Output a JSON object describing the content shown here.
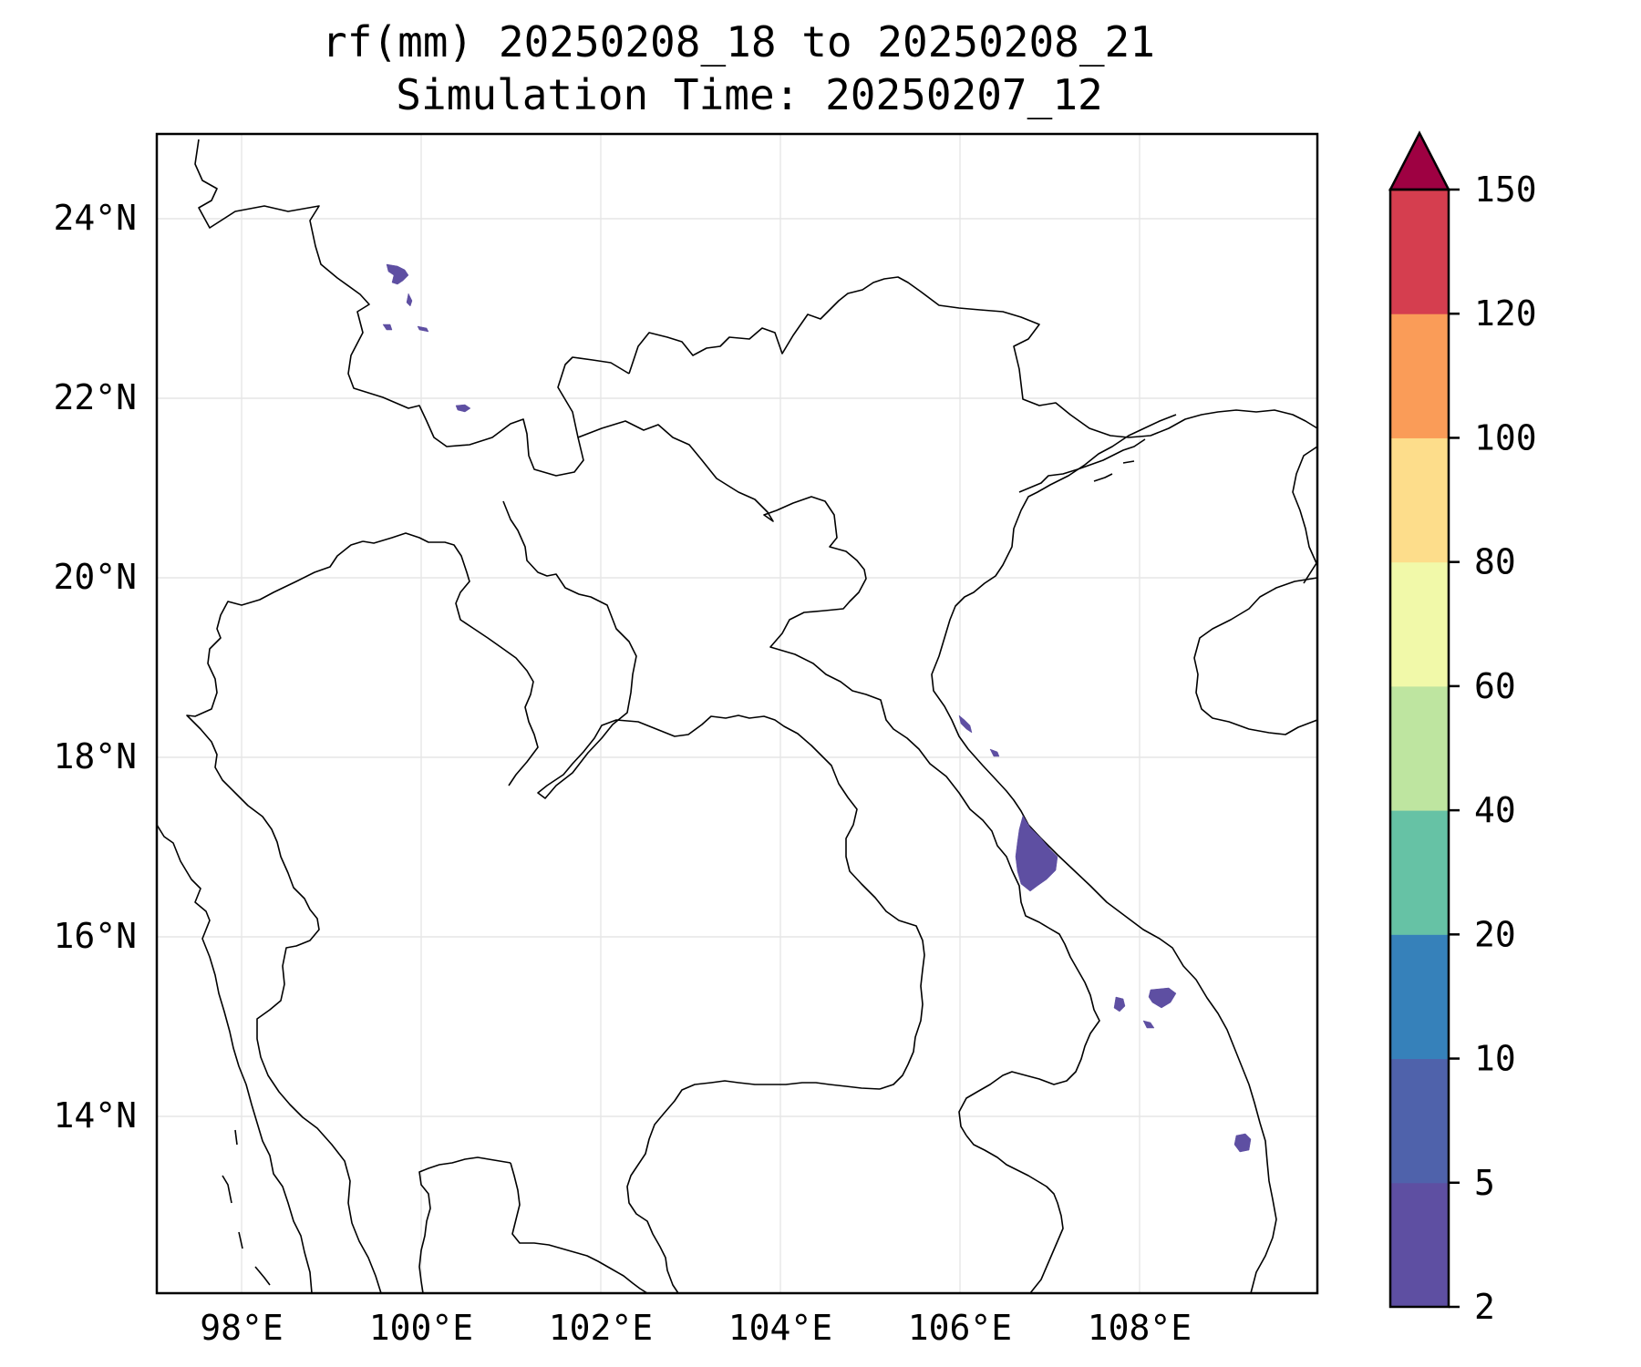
{
  "title": {
    "line1": "rf(mm) 20250208_18 to 20250208_21",
    "line2": "Simulation Time: 20250207_12"
  },
  "map": {
    "x_ticks": [
      "98°E",
      "100°E",
      "102°E",
      "104°E",
      "106°E",
      "108°E"
    ],
    "y_ticks": [
      "24°N",
      "22°N",
      "20°N",
      "18°N",
      "16°N",
      "14°N"
    ],
    "gridlines": true
  },
  "colorbar": {
    "levels": [
      "2",
      "5",
      "10",
      "20",
      "40",
      "60",
      "80",
      "100",
      "120",
      "150"
    ],
    "colors": [
      "#5e4fa2",
      "#4f62ab",
      "#3681ba",
      "#66c2a5",
      "#bee5a0",
      "#f1f9a9",
      "#fddd8b",
      "#fa9c58",
      "#d53e4f",
      "#9e0142"
    ],
    "extend": "max"
  }
}
